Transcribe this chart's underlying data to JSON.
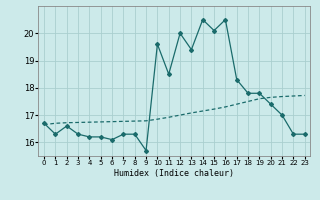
{
  "x": [
    0,
    1,
    2,
    3,
    4,
    5,
    6,
    7,
    8,
    9,
    10,
    11,
    12,
    13,
    14,
    15,
    16,
    17,
    18,
    19,
    20,
    21,
    22,
    23
  ],
  "y_main": [
    16.7,
    16.3,
    16.6,
    16.3,
    16.2,
    16.2,
    16.1,
    16.3,
    16.3,
    15.7,
    19.6,
    18.5,
    20.0,
    19.4,
    20.5,
    20.1,
    20.5,
    18.3,
    17.8,
    17.8,
    17.4,
    17.0,
    16.3,
    16.3
  ],
  "y_trend": [
    16.65,
    16.7,
    16.72,
    16.73,
    16.74,
    16.75,
    16.76,
    16.77,
    16.78,
    16.79,
    16.85,
    16.92,
    17.0,
    17.08,
    17.15,
    17.22,
    17.3,
    17.4,
    17.5,
    17.6,
    17.65,
    17.68,
    17.7,
    17.72
  ],
  "line_color": "#1a6b6b",
  "bg_color": "#cceaea",
  "grid_color": "#aacfcf",
  "xlabel": "Humidex (Indice chaleur)",
  "yticks": [
    16,
    17,
    18,
    19,
    20
  ],
  "xlim": [
    -0.5,
    23.5
  ],
  "ylim": [
    15.5,
    21.0
  ]
}
